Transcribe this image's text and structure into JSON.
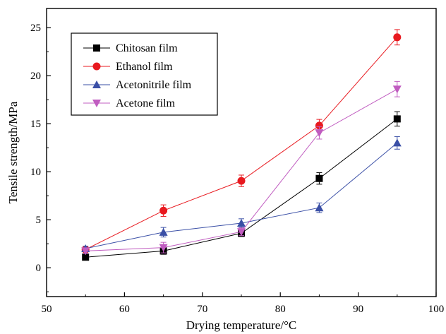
{
  "chart_data": {
    "type": "line",
    "title": "",
    "xlabel": "Drying temperature/°C",
    "ylabel": "Tensile strength/MPa",
    "xlim": [
      50,
      100
    ],
    "ylim": [
      -3,
      27
    ],
    "x_ticks": [
      50,
      60,
      70,
      80,
      90,
      100
    ],
    "y_ticks": [
      0,
      5,
      10,
      15,
      20,
      25
    ],
    "grid": false,
    "legend_position": "top-left",
    "x": [
      55,
      65,
      75,
      85,
      95
    ],
    "series": [
      {
        "name": "Chitosan film",
        "color": "#000000",
        "marker": "square",
        "values": [
          1.1,
          1.75,
          3.6,
          9.3,
          15.5
        ],
        "errors": [
          0.25,
          0.35,
          0.35,
          0.6,
          0.75
        ]
      },
      {
        "name": "Ethanol film",
        "color": "#e8191f",
        "marker": "circle",
        "values": [
          1.9,
          5.95,
          9.05,
          14.8,
          24.0
        ],
        "errors": [
          0.25,
          0.6,
          0.6,
          0.65,
          0.8
        ]
      },
      {
        "name": "Acetonitrile film",
        "color": "#3a4fa6",
        "marker": "triangle-up",
        "values": [
          2.0,
          3.7,
          4.65,
          6.25,
          13.0
        ],
        "errors": [
          0.25,
          0.5,
          0.45,
          0.5,
          0.65
        ]
      },
      {
        "name": "Acetone film",
        "color": "#c05cc0",
        "marker": "triangle-down",
        "values": [
          1.75,
          2.1,
          3.75,
          14.05,
          18.6
        ],
        "errors": [
          0.25,
          0.55,
          0.4,
          0.65,
          0.8
        ]
      }
    ]
  }
}
